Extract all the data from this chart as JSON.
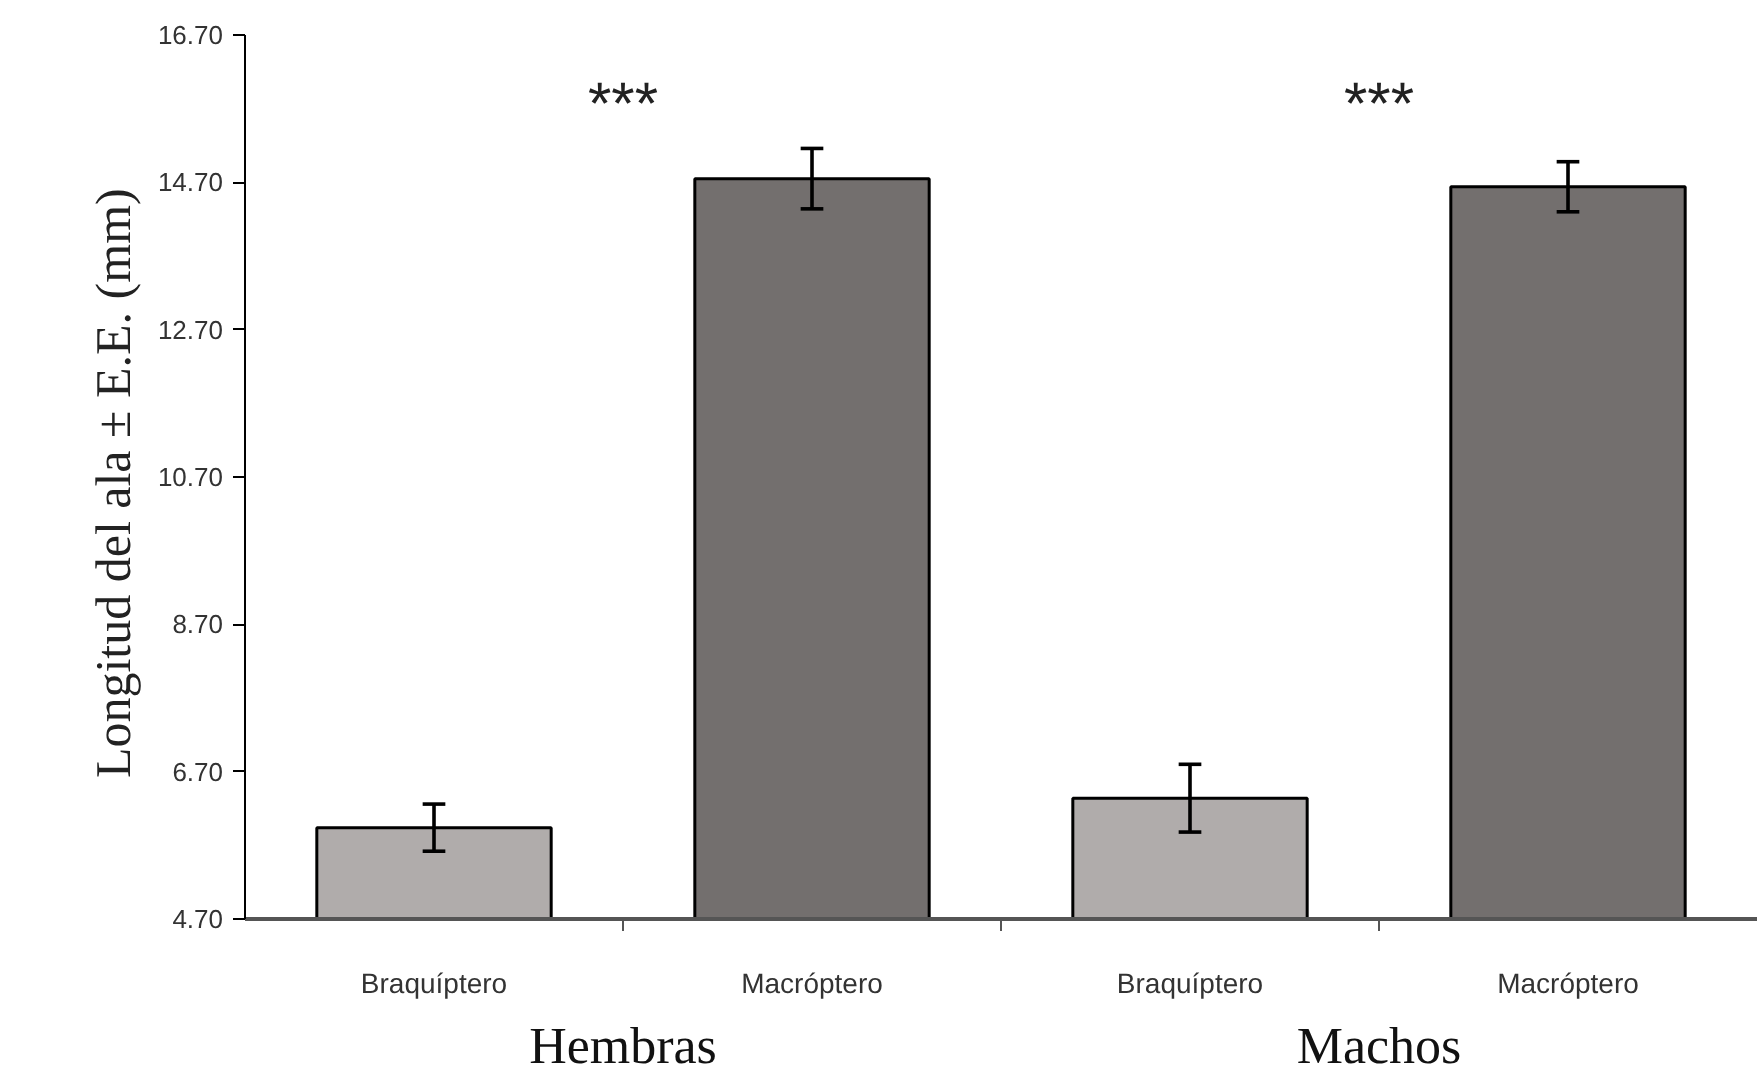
{
  "chart_data": {
    "type": "bar",
    "ylabel": "Longitud  del ala ± E.E. (mm)",
    "categories": [
      "Braquíptero",
      "Macróptero",
      "Braquíptero",
      "Macróptero"
    ],
    "values": [
      5.94,
      14.75,
      6.34,
      14.64
    ],
    "errors": [
      0.32,
      0.41,
      0.46,
      0.34
    ],
    "colors": [
      "#b0acab",
      "#736f6e",
      "#b0acab",
      "#736f6e"
    ],
    "ylim": [
      4.7,
      16.7
    ],
    "yticks": [
      {
        "value": 4.7,
        "label": "4.70"
      },
      {
        "value": 6.7,
        "label": "6.70"
      },
      {
        "value": 8.7,
        "label": "8.70"
      },
      {
        "value": 10.7,
        "label": "10.70"
      },
      {
        "value": 12.7,
        "label": "12.70"
      },
      {
        "value": 14.7,
        "label": "14.70"
      },
      {
        "value": 16.7,
        "label": "16.70"
      }
    ],
    "annotations": [
      "***",
      "***",
      "Hembras",
      "Machos"
    ],
    "grid": false
  }
}
